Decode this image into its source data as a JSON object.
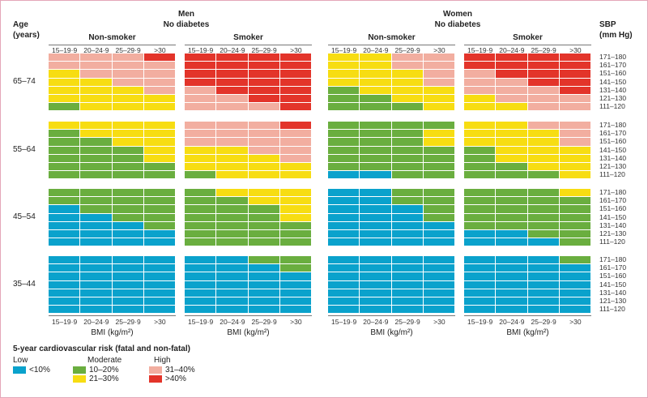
{
  "labels": {
    "age_title": "Age",
    "age_units": "(years)",
    "sbp_title": "SBP",
    "sbp_units": "(mm Hg)",
    "men_title": "Men",
    "women_title": "Women",
    "no_diabetes": "No diabetes",
    "non_smoker": "Non-smoker",
    "smoker": "Smoker",
    "bmi_label": "BMI (kg/m²)"
  },
  "legend": {
    "title": "5-year cardiovascular risk (fatal and non-fatal)",
    "low_label": "Low",
    "moderate_label": "Moderate",
    "high_label": "High",
    "items": [
      {
        "code": "B",
        "label": "<10%",
        "color": "#0aa2cc"
      },
      {
        "code": "G",
        "label": "10–20%",
        "color": "#6aae3f"
      },
      {
        "code": "Y",
        "label": "21–30%",
        "color": "#f7dd12"
      },
      {
        "code": "P",
        "label": "31–40%",
        "color": "#f2aea0"
      },
      {
        "code": "R",
        "label": ">40%",
        "color": "#e3342a"
      }
    ]
  },
  "chart_data": {
    "type": "heatmap",
    "title": "5-year cardiovascular risk (fatal and non-fatal)",
    "xlabel": "BMI (kg/m²)",
    "ylabel": "Age (years)",
    "bmi_categories": [
      "15–19·9",
      "20–24·9",
      "25–29·9",
      ">30"
    ],
    "sbp_categories": [
      "171–180",
      "161–170",
      "151–160",
      "141–150",
      "131–140",
      "121–130",
      "111–120"
    ],
    "age_groups": [
      "65–74",
      "55–64",
      "45–54",
      "35–44"
    ],
    "panels": [
      {
        "sex": "Men",
        "diabetes": "No diabetes",
        "smoking": "Non-smoker"
      },
      {
        "sex": "Men",
        "diabetes": "No diabetes",
        "smoking": "Smoker"
      },
      {
        "sex": "Women",
        "diabetes": "No diabetes",
        "smoking": "Non-smoker"
      },
      {
        "sex": "Women",
        "diabetes": "No diabetes",
        "smoking": "Smoker"
      }
    ],
    "risk_codes": {
      "B": "<10%",
      "G": "10–20%",
      "Y": "21–30%",
      "P": "31–40%",
      "R": ">40%"
    },
    "grid": [
      [
        [
          "PPPR",
          "PPPP",
          "YPPP",
          "YYPP",
          "YYYP",
          "YYYY",
          "GYYY"
        ],
        [
          "RRRR",
          "RRRR",
          "RRRR",
          "RRRR",
          "PRRR",
          "PPRR",
          "PPPR"
        ],
        [
          "YYPP",
          "YYPP",
          "YYYP",
          "YYYP",
          "GYYY",
          "GGYY",
          "GGGY"
        ],
        [
          "RRRR",
          "RRRR",
          "PRRR",
          "PPRR",
          "PPPR",
          "YPPP",
          "YYPP"
        ]
      ],
      [
        [
          "YYYY",
          "GYYY",
          "GGYY",
          "GGGY",
          "GGGY",
          "GGGG",
          "GGGG"
        ],
        [
          "PPPR",
          "PPPP",
          "PPPP",
          "YYPP",
          "YYYP",
          "YYYY",
          "GYYY"
        ],
        [
          "GGGG",
          "GGGY",
          "GGGY",
          "GGGG",
          "GGGG",
          "GGGG",
          "BBGG"
        ],
        [
          "YYPP",
          "YYYP",
          "YYYP",
          "GYYY",
          "GYYY",
          "GGYY",
          "GGGY"
        ]
      ],
      [
        [
          "GGGG",
          "GGGG",
          "BGGG",
          "BBGG",
          "BBBG",
          "BBBB",
          "BBBB"
        ],
        [
          "GYYY",
          "GGYY",
          "GGGY",
          "GGGY",
          "GGGG",
          "GGGG",
          "GGGG"
        ],
        [
          "BBGG",
          "BBGG",
          "BBBG",
          "BBBG",
          "BBBB",
          "BBBB",
          "BBBB"
        ],
        [
          "GGGY",
          "GGGG",
          "GGGG",
          "GGGG",
          "GGGG",
          "BBGG",
          "BBBG"
        ]
      ],
      [
        [
          "BBBB",
          "BBBB",
          "BBBB",
          "BBBB",
          "BBBB",
          "BBBB",
          "BBBB"
        ],
        [
          "BBGG",
          "BBBG",
          "BBBB",
          "BBBB",
          "BBBB",
          "BBBB",
          "BBBB"
        ],
        [
          "BBBB",
          "BBBB",
          "BBBB",
          "BBBB",
          "BBBB",
          "BBBB",
          "BBBB"
        ],
        [
          "BBBG",
          "BBBB",
          "BBBB",
          "BBBB",
          "BBBB",
          "BBBB",
          "BBBB"
        ]
      ]
    ]
  }
}
